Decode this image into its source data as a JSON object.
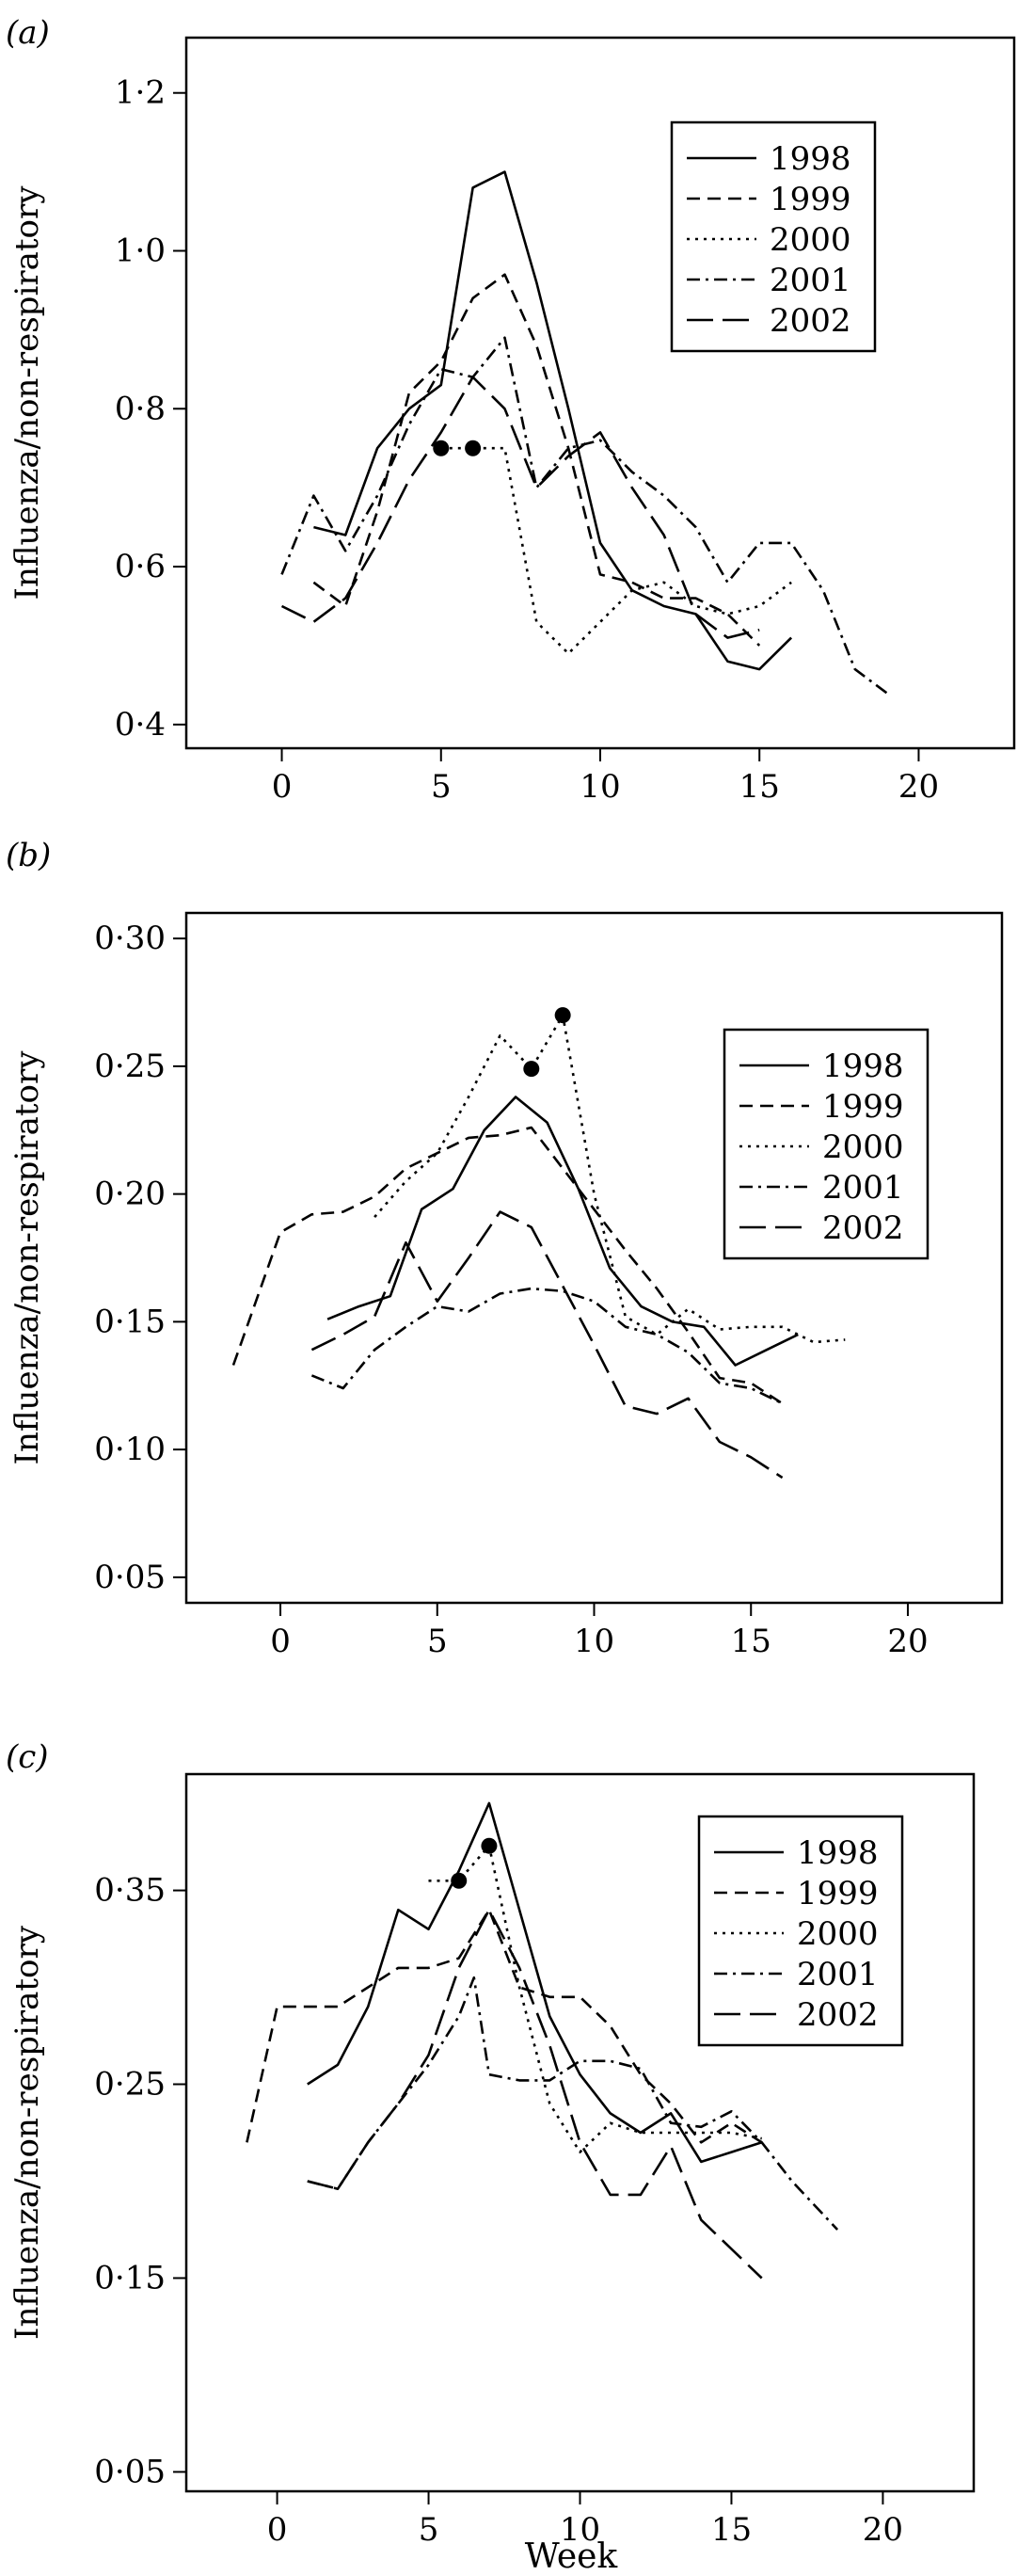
{
  "chart_data": [
    {
      "type": "line",
      "panel": "a",
      "panel_label": "(a)",
      "ylabel": "Influenza/non-respiratory",
      "xlabel": "",
      "xlim": [
        -3,
        23
      ],
      "ylim": [
        0.37,
        1.27
      ],
      "xticks": [
        0,
        5,
        10,
        15,
        20
      ],
      "xtick_labels": [
        "0",
        "5",
        "10",
        "15",
        "20"
      ],
      "yticks": [
        0.4,
        0.6,
        0.8,
        1.0,
        1.2
      ],
      "ytick_labels": [
        "0·4",
        "0·6",
        "0·8",
        "1·0",
        "1·2"
      ],
      "legend_position": "top-right",
      "series": [
        {
          "name": "1998",
          "dash": "solid",
          "x": [
            1,
            2,
            3,
            4,
            5,
            6,
            7,
            8,
            9,
            10,
            11,
            12,
            13,
            14,
            15,
            16
          ],
          "y": [
            0.65,
            0.64,
            0.75,
            0.8,
            0.83,
            1.08,
            1.1,
            0.96,
            0.8,
            0.63,
            0.57,
            0.55,
            0.54,
            0.48,
            0.47,
            0.51
          ]
        },
        {
          "name": "1999",
          "dash": "dashed",
          "x": [
            1,
            2,
            3,
            4,
            5,
            6,
            7,
            8,
            9,
            10,
            11,
            12,
            13,
            14,
            15
          ],
          "y": [
            0.58,
            0.55,
            0.67,
            0.82,
            0.86,
            0.94,
            0.97,
            0.88,
            0.75,
            0.59,
            0.58,
            0.56,
            0.56,
            0.54,
            0.5
          ]
        },
        {
          "name": "2000",
          "dash": "dotted",
          "x": [
            5,
            6,
            7,
            8,
            9,
            10,
            11,
            12,
            13,
            14,
            15,
            16
          ],
          "y": [
            0.75,
            0.75,
            0.75,
            0.53,
            0.49,
            0.53,
            0.57,
            0.58,
            0.55,
            0.54,
            0.55,
            0.58
          ]
        },
        {
          "name": "2001",
          "dash": "dashdot",
          "x": [
            0,
            1,
            2,
            3,
            4,
            5,
            6,
            7,
            8,
            9,
            10,
            11,
            12,
            13,
            14,
            15,
            16,
            17,
            18,
            19
          ],
          "y": [
            0.59,
            0.69,
            0.62,
            0.69,
            0.78,
            0.85,
            0.84,
            0.89,
            0.7,
            0.75,
            0.76,
            0.72,
            0.69,
            0.65,
            0.58,
            0.63,
            0.63,
            0.57,
            0.47,
            0.44
          ]
        },
        {
          "name": "2002",
          "dash": "longdash",
          "x": [
            0,
            1,
            2,
            3,
            4,
            5,
            6,
            7,
            8,
            9,
            10,
            11,
            12,
            13,
            14,
            15
          ],
          "y": [
            0.55,
            0.53,
            0.56,
            0.63,
            0.71,
            0.77,
            0.84,
            0.8,
            0.7,
            0.74,
            0.77,
            0.7,
            0.64,
            0.54,
            0.51,
            0.52
          ]
        }
      ],
      "markers": {
        "x": [
          5,
          6
        ],
        "y": [
          0.75,
          0.75
        ]
      }
    },
    {
      "type": "line",
      "panel": "b",
      "panel_label": "(b)",
      "ylabel": "Influenza/non-respiratory",
      "xlabel": "",
      "xlim": [
        -3,
        23
      ],
      "ylim": [
        0.04,
        0.31
      ],
      "xticks": [
        0,
        5,
        10,
        15,
        20
      ],
      "xtick_labels": [
        "0",
        "5",
        "10",
        "15",
        "20"
      ],
      "yticks": [
        0.05,
        0.1,
        0.15,
        0.2,
        0.25,
        0.3
      ],
      "ytick_labels": [
        "0·05",
        "0·10",
        "0·15",
        "0·20",
        "0·25",
        "0·30"
      ],
      "legend_position": "top-right",
      "series": [
        {
          "name": "1998",
          "dash": "solid",
          "x": [
            1.5,
            2.5,
            3.5,
            4.5,
            5.5,
            6.5,
            7.5,
            8.5,
            9.5,
            10.5,
            11.5,
            12.5,
            13.5,
            14.5,
            15.5,
            16.5
          ],
          "y": [
            0.151,
            0.156,
            0.16,
            0.194,
            0.202,
            0.225,
            0.238,
            0.228,
            0.202,
            0.171,
            0.156,
            0.15,
            0.148,
            0.133,
            0.139,
            0.145
          ]
        },
        {
          "name": "1999",
          "dash": "dashed",
          "x": [
            -1.5,
            0,
            1,
            2,
            3,
            4,
            5,
            6,
            7,
            8,
            9,
            10,
            11,
            12,
            13,
            14,
            15,
            16
          ],
          "y": [
            0.133,
            0.185,
            0.192,
            0.193,
            0.199,
            0.21,
            0.216,
            0.222,
            0.223,
            0.226,
            0.21,
            0.194,
            0.178,
            0.163,
            0.146,
            0.128,
            0.126,
            0.118
          ]
        },
        {
          "name": "2000",
          "dash": "dotted",
          "x": [
            3,
            4,
            5,
            6,
            7,
            8,
            9,
            10,
            11,
            12,
            13,
            14,
            15,
            16,
            17,
            18
          ],
          "y": [
            0.191,
            0.205,
            0.216,
            0.238,
            0.262,
            0.249,
            0.27,
            0.2,
            0.152,
            0.145,
            0.155,
            0.147,
            0.148,
            0.148,
            0.142,
            0.143
          ]
        },
        {
          "name": "2001",
          "dash": "dashdot",
          "x": [
            1,
            2,
            3,
            4,
            5,
            6,
            7,
            8,
            9,
            10,
            11,
            12,
            13,
            14,
            15,
            16
          ],
          "y": [
            0.129,
            0.124,
            0.139,
            0.148,
            0.156,
            0.154,
            0.161,
            0.163,
            0.162,
            0.158,
            0.148,
            0.145,
            0.138,
            0.126,
            0.124,
            0.118
          ]
        },
        {
          "name": "2002",
          "dash": "longdash",
          "x": [
            1,
            2,
            3,
            4,
            5,
            6,
            7,
            8,
            9,
            10,
            11,
            12,
            13,
            14,
            15,
            16
          ],
          "y": [
            0.139,
            0.145,
            0.152,
            0.181,
            0.158,
            0.175,
            0.193,
            0.187,
            0.164,
            0.141,
            0.117,
            0.114,
            0.12,
            0.103,
            0.097,
            0.089
          ]
        }
      ],
      "markers": {
        "x": [
          8,
          9
        ],
        "y": [
          0.249,
          0.27
        ]
      }
    },
    {
      "type": "line",
      "panel": "c",
      "panel_label": "(c)",
      "ylabel": "Influenza/non-respiratory",
      "xlabel": "Week",
      "xlim": [
        -3,
        23
      ],
      "ylim": [
        0.04,
        0.41
      ],
      "xticks": [
        0,
        5,
        10,
        15,
        20
      ],
      "xtick_labels": [
        "0",
        "5",
        "10",
        "15",
        "20"
      ],
      "yticks": [
        0.05,
        0.15,
        0.25,
        0.35
      ],
      "ytick_labels": [
        "0·05",
        "0·15",
        "0·25",
        "0·35"
      ],
      "legend_position": "top-right",
      "series": [
        {
          "name": "1998",
          "dash": "solid",
          "x": [
            1,
            2,
            3,
            4,
            5,
            6,
            7,
            8,
            9,
            10,
            11,
            12,
            13,
            14,
            15,
            16
          ],
          "y": [
            0.25,
            0.26,
            0.29,
            0.34,
            0.33,
            0.36,
            0.395,
            0.34,
            0.285,
            0.255,
            0.235,
            0.225,
            0.235,
            0.21,
            0.215,
            0.22
          ]
        },
        {
          "name": "1999",
          "dash": "dashed",
          "x": [
            -1,
            0,
            1,
            2,
            3,
            4,
            5,
            6,
            7,
            8,
            9,
            10,
            11,
            12,
            13,
            14,
            15,
            16
          ],
          "y": [
            0.22,
            0.29,
            0.29,
            0.29,
            0.3,
            0.31,
            0.31,
            0.315,
            0.34,
            0.3,
            0.295,
            0.295,
            0.28,
            0.255,
            0.24,
            0.22,
            0.23,
            0.22
          ]
        },
        {
          "name": "2000",
          "dash": "dotted",
          "x": [
            5,
            6,
            7,
            8,
            9,
            10,
            11,
            12,
            13,
            14,
            15,
            16
          ],
          "y": [
            0.355,
            0.355,
            0.373,
            0.3,
            0.24,
            0.215,
            0.23,
            0.225,
            0.225,
            0.225,
            0.225,
            0.222
          ]
        },
        {
          "name": "2001",
          "dash": "dashdot",
          "x": [
            1,
            2,
            3,
            4,
            5,
            6,
            6.5,
            7,
            8,
            9,
            10,
            11,
            12,
            13,
            14,
            15,
            16,
            17,
            18.5
          ],
          "y": [
            0.2,
            0.196,
            0.22,
            0.24,
            0.26,
            0.285,
            0.305,
            0.255,
            0.252,
            0.252,
            0.262,
            0.262,
            0.258,
            0.23,
            0.228,
            0.236,
            0.22,
            0.2,
            0.175
          ]
        },
        {
          "name": "2002",
          "dash": "longdash",
          "x": [
            1,
            2,
            3,
            4,
            5,
            6,
            7,
            8,
            9,
            10,
            11,
            12,
            13,
            14,
            15,
            16
          ],
          "y": [
            0.2,
            0.196,
            0.22,
            0.24,
            0.265,
            0.31,
            0.34,
            0.31,
            0.27,
            0.22,
            0.193,
            0.193,
            0.218,
            0.18,
            0.165,
            0.15
          ]
        }
      ],
      "markers": {
        "x": [
          6,
          7
        ],
        "y": [
          0.355,
          0.373
        ]
      }
    }
  ]
}
